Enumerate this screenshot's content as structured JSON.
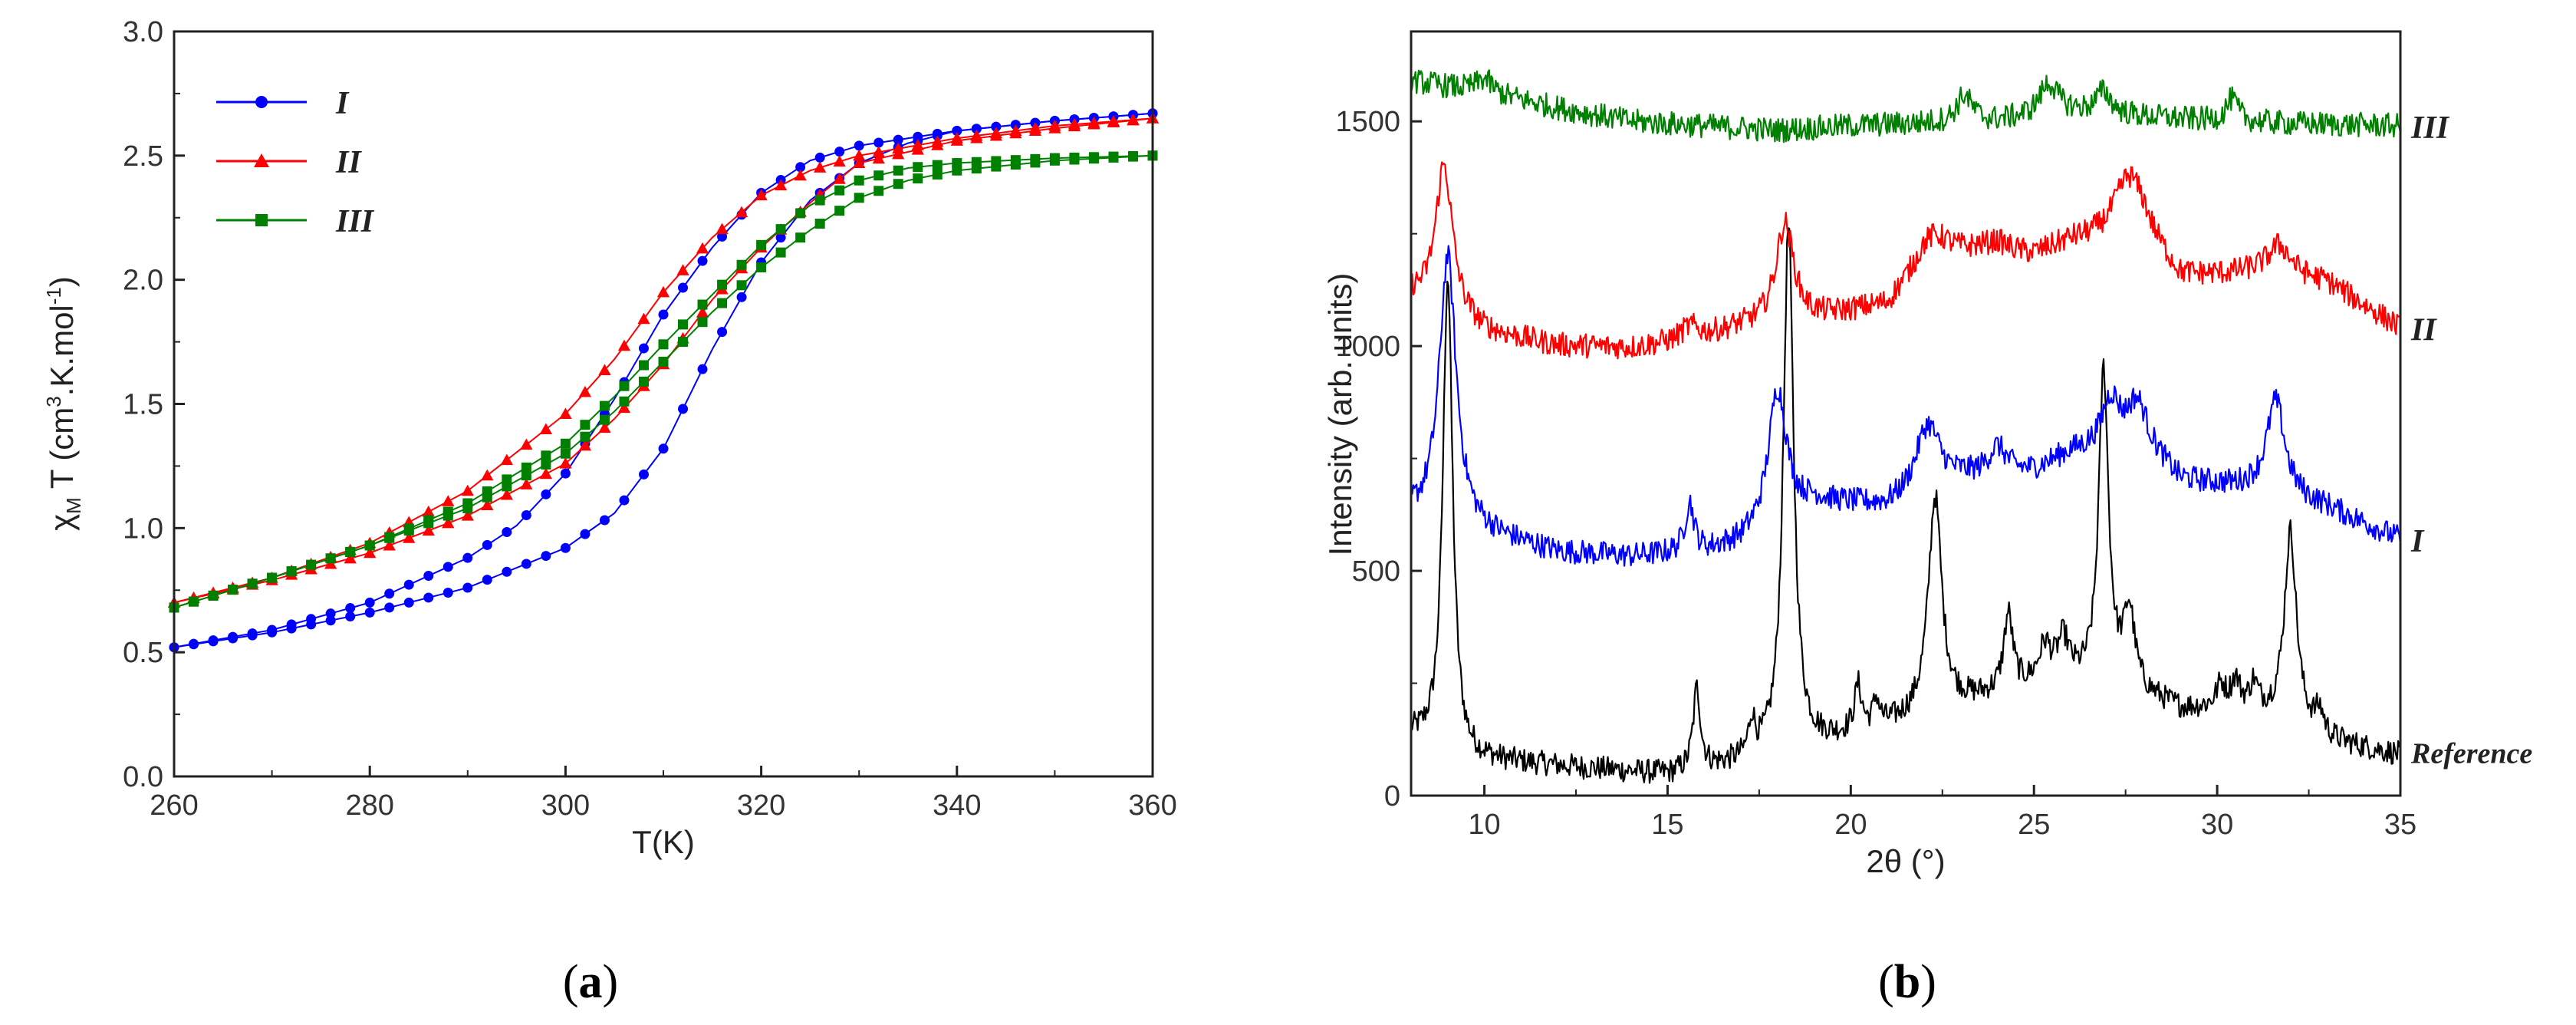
{
  "figure": {
    "panel_a_label": "a",
    "panel_b_label": "b"
  },
  "colors": {
    "I": "#0000ff",
    "II": "#ff0000",
    "III": "#008000",
    "Reference": "#000000",
    "axis": "#222222"
  },
  "chart_data": [
    {
      "type": "scatter",
      "panel": "a",
      "xlabel": "T(K)",
      "ylabel_parts": [
        "χ",
        "M",
        " T (cm",
        "3",
        ".K.mol",
        "-1",
        ")"
      ],
      "xlim": [
        260,
        360
      ],
      "ylim": [
        0.0,
        3.0
      ],
      "xticks": [
        260,
        280,
        300,
        320,
        340,
        360
      ],
      "xtick_labels": [
        "260",
        "280",
        "300",
        "320",
        "340",
        "360"
      ],
      "yticks": [
        0.0,
        0.5,
        1.0,
        1.5,
        2.0,
        2.5,
        3.0
      ],
      "ytick_labels": [
        "0.0",
        "0.5",
        "1.0",
        "1.5",
        "2.0",
        "2.5",
        "3.0"
      ],
      "legend_position": "top-left",
      "legend": [
        "I",
        "II",
        "III"
      ],
      "series": [
        {
          "name": "I",
          "marker": "circle",
          "heating": {
            "x": [
              260,
              270,
              280,
              290,
              300,
              305,
              310,
              315,
              320,
              325,
              330,
              335,
              340,
              350,
              360
            ],
            "y": [
              0.52,
              0.58,
              0.66,
              0.76,
              0.92,
              1.06,
              1.32,
              1.72,
              2.07,
              2.32,
              2.47,
              2.55,
              2.6,
              2.64,
              2.67
            ]
          },
          "cooling": {
            "x": [
              260,
              270,
              280,
              290,
              295,
              300,
              305,
              310,
              315,
              320,
              325,
              330,
              340,
              350,
              360
            ],
            "y": [
              0.52,
              0.59,
              0.7,
              0.88,
              1.01,
              1.22,
              1.52,
              1.86,
              2.13,
              2.35,
              2.48,
              2.54,
              2.6,
              2.64,
              2.67
            ]
          }
        },
        {
          "name": "II",
          "marker": "triangle",
          "heating": {
            "x": [
              260,
              270,
              280,
              290,
              300,
              305,
              310,
              315,
              320,
              325,
              330,
              340,
              350,
              360
            ],
            "y": [
              0.7,
              0.79,
              0.9,
              1.05,
              1.26,
              1.44,
              1.66,
              1.92,
              2.13,
              2.31,
              2.47,
              2.56,
              2.61,
              2.65
            ]
          },
          "cooling": {
            "x": [
              260,
              270,
              280,
              290,
              300,
              305,
              310,
              315,
              320,
              325,
              330,
              340,
              350,
              360
            ],
            "y": [
              0.7,
              0.8,
              0.94,
              1.15,
              1.46,
              1.68,
              1.95,
              2.17,
              2.34,
              2.44,
              2.5,
              2.57,
              2.62,
              2.65
            ]
          }
        },
        {
          "name": "III",
          "marker": "square",
          "heating": {
            "x": [
              260,
              270,
              280,
              290,
              300,
              305,
              310,
              315,
              320,
              325,
              330,
              335,
              340,
              350,
              360
            ],
            "y": [
              0.68,
              0.8,
              0.93,
              1.08,
              1.3,
              1.47,
              1.67,
              1.87,
              2.05,
              2.2,
              2.33,
              2.4,
              2.44,
              2.48,
              2.5
            ]
          },
          "cooling": {
            "x": [
              260,
              270,
              280,
              290,
              300,
              305,
              310,
              315,
              320,
              325,
              330,
              335,
              340,
              350,
              360
            ],
            "y": [
              0.68,
              0.8,
              0.93,
              1.1,
              1.34,
              1.53,
              1.74,
              1.94,
              2.14,
              2.3,
              2.4,
              2.45,
              2.47,
              2.49,
              2.5
            ]
          }
        }
      ]
    },
    {
      "type": "line",
      "panel": "b",
      "xlabel": "2θ (°)",
      "ylabel": "Intensity (arb. units)",
      "xlim": [
        8,
        35
      ],
      "ylim": [
        0,
        1700
      ],
      "xticks": [
        10,
        15,
        20,
        25,
        30,
        35
      ],
      "xtick_labels": [
        "10",
        "15",
        "20",
        "25",
        "30",
        "35"
      ],
      "yticks": [
        0,
        500,
        1000,
        1500
      ],
      "ytick_labels": [
        "0",
        "500",
        "1000",
        "1500"
      ],
      "series": [
        {
          "name": "Reference",
          "label": "Reference",
          "baseline": [
            [
              8,
              130
            ],
            [
              9.5,
              80
            ],
            [
              12,
              65
            ],
            [
              15,
              45
            ],
            [
              17,
              70
            ],
            [
              19,
              110
            ],
            [
              21,
              150
            ],
            [
              23,
              200
            ],
            [
              25,
              240
            ],
            [
              27,
              250
            ],
            [
              29,
              190
            ],
            [
              31,
              190
            ],
            [
              33,
              120
            ],
            [
              35,
              90
            ]
          ],
          "peaks": [
            [
              9.0,
              1060,
              0.16
            ],
            [
              15.8,
              180,
              0.12
            ],
            [
              17.3,
              80,
              0.1
            ],
            [
              18.3,
              1170,
              0.17
            ],
            [
              20.2,
              100,
              0.12
            ],
            [
              20.7,
              60,
              0.1
            ],
            [
              22.3,
              480,
              0.22
            ],
            [
              24.3,
              170,
              0.15
            ],
            [
              25.3,
              80,
              0.2
            ],
            [
              25.8,
              90,
              0.2
            ],
            [
              26.9,
              690,
              0.16
            ],
            [
              27.6,
              170,
              0.18
            ],
            [
              30.1,
              50,
              0.15
            ],
            [
              30.5,
              60,
              0.15
            ],
            [
              31.0,
              50,
              0.12
            ],
            [
              32.0,
              430,
              0.2
            ],
            [
              32.8,
              50,
              0.15
            ]
          ]
        },
        {
          "name": "I",
          "label": "I",
          "baseline": [
            [
              8,
              620
            ],
            [
              10,
              580
            ],
            [
              12,
              540
            ],
            [
              14,
              530
            ],
            [
              16,
              540
            ],
            [
              17,
              560
            ],
            [
              19,
              650
            ],
            [
              21,
              640
            ],
            [
              23,
              700
            ],
            [
              25,
              720
            ],
            [
              26,
              760
            ],
            [
              28,
              780
            ],
            [
              29,
              700
            ],
            [
              31,
              680
            ],
            [
              33,
              640
            ],
            [
              35,
              570
            ]
          ],
          "peaks": [
            [
              9.0,
              600,
              0.28
            ],
            [
              15.6,
              110,
              0.15
            ],
            [
              18.0,
              300,
              0.3
            ],
            [
              22.1,
              150,
              0.4
            ],
            [
              24.0,
              60,
              0.3
            ],
            [
              27.1,
              110,
              0.3
            ],
            [
              27.8,
              90,
              0.3
            ],
            [
              31.6,
              210,
              0.3
            ]
          ]
        },
        {
          "name": "II",
          "label": "II",
          "baseline": [
            [
              8,
              1110
            ],
            [
              10,
              1030
            ],
            [
              12,
              1000
            ],
            [
              14,
              995
            ],
            [
              15.5,
              1010
            ],
            [
              17,
              1040
            ],
            [
              19,
              1060
            ],
            [
              21,
              1090
            ],
            [
              22,
              1190
            ],
            [
              23.5,
              1210
            ],
            [
              25,
              1200
            ],
            [
              26,
              1230
            ],
            [
              28,
              1240
            ],
            [
              29,
              1150
            ],
            [
              31,
              1160
            ],
            [
              33,
              1140
            ],
            [
              35,
              1040
            ]
          ],
          "peaks": [
            [
              8.9,
              330,
              0.28
            ],
            [
              15.6,
              30,
              0.3
            ],
            [
              18.2,
              220,
              0.3
            ],
            [
              22.3,
              50,
              0.5
            ],
            [
              24.0,
              20,
              0.4
            ],
            [
              27.6,
              140,
              0.5
            ],
            [
              31.7,
              70,
              0.4
            ]
          ]
        },
        {
          "name": "III",
          "label": "III",
          "baseline": [
            [
              8,
              1590
            ],
            [
              10,
              1565
            ],
            [
              12,
              1530
            ],
            [
              14,
              1500
            ],
            [
              16,
              1490
            ],
            [
              18,
              1480
            ],
            [
              20,
              1490
            ],
            [
              22,
              1495
            ],
            [
              24,
              1500
            ],
            [
              26,
              1520
            ],
            [
              28,
              1510
            ],
            [
              30,
              1500
            ],
            [
              32,
              1495
            ],
            [
              35,
              1490
            ]
          ],
          "peaks": [
            [
              10.0,
              30,
              0.25
            ],
            [
              23.1,
              60,
              0.25
            ],
            [
              25.4,
              70,
              0.3
            ],
            [
              26.9,
              50,
              0.25
            ],
            [
              30.4,
              50,
              0.2
            ]
          ]
        }
      ]
    }
  ]
}
